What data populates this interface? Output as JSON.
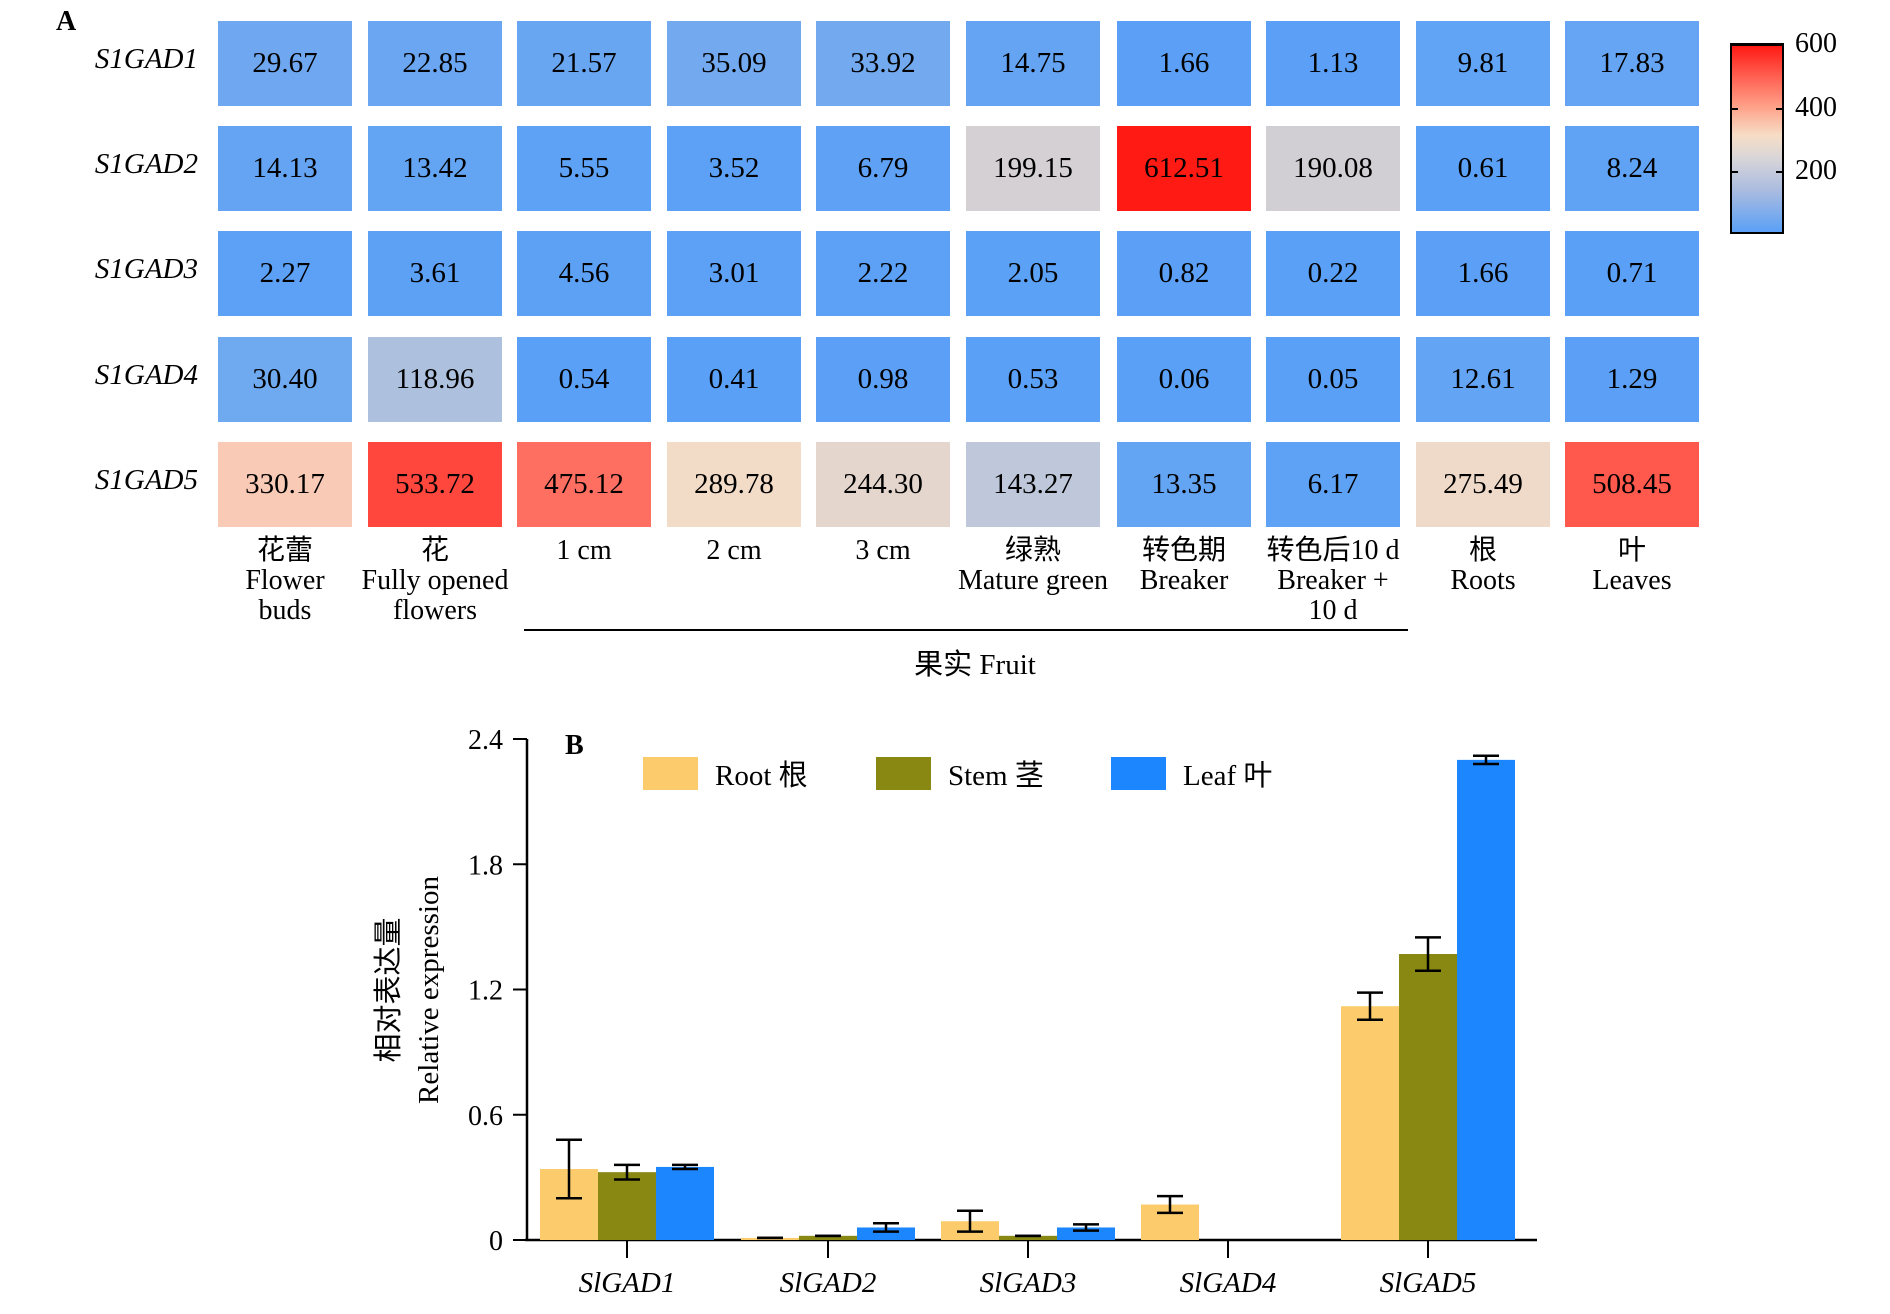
{
  "chart_data": [
    {
      "type": "heatmap",
      "panel": "A",
      "rows": [
        "S1GAD1",
        "S1GAD2",
        "S1GAD3",
        "S1GAD4",
        "S1GAD5"
      ],
      "columns": [
        {
          "zh": "花蕾",
          "en": "Flower buds",
          "en_lines": [
            "Flower",
            "buds"
          ]
        },
        {
          "zh": "花",
          "en": "Fully opened flowers",
          "en_lines": [
            "Fully opened",
            "flowers"
          ]
        },
        {
          "zh": "",
          "en": "1 cm",
          "en_lines": [
            "1 cm"
          ]
        },
        {
          "zh": "",
          "en": "2 cm",
          "en_lines": [
            "2 cm"
          ]
        },
        {
          "zh": "",
          "en": "3 cm",
          "en_lines": [
            "3 cm"
          ]
        },
        {
          "zh": "绿熟",
          "en": "Mature green",
          "en_lines": [
            "Mature green"
          ]
        },
        {
          "zh": "转色期",
          "en": "Breaker",
          "en_lines": [
            "Breaker"
          ]
        },
        {
          "zh": "转色后10 d",
          "en": "Breaker + 10 d",
          "en_lines": [
            "Breaker +",
            "10 d"
          ]
        },
        {
          "zh": "根",
          "en": "Roots",
          "en_lines": [
            "Roots"
          ]
        },
        {
          "zh": "叶",
          "en": "Leaves",
          "en_lines": [
            "Leaves"
          ]
        }
      ],
      "values": [
        [
          "29.67",
          "22.85",
          "21.57",
          "35.09",
          "33.92",
          "14.75",
          "1.66",
          "1.13",
          "9.81",
          "17.83"
        ],
        [
          "14.13",
          "13.42",
          "5.55",
          "3.52",
          "6.79",
          "199.15",
          "612.51",
          "190.08",
          "0.61",
          "8.24"
        ],
        [
          "2.27",
          "3.61",
          "4.56",
          "3.01",
          "2.22",
          "2.05",
          "0.82",
          "0.22",
          "1.66",
          "0.71"
        ],
        [
          "30.40",
          "118.96",
          "0.54",
          "0.41",
          "0.98",
          "0.53",
          "0.06",
          "0.05",
          "12.61",
          "1.29"
        ],
        [
          "330.17",
          "533.72",
          "475.12",
          "289.78",
          "244.30",
          "143.27",
          "13.35",
          "6.17",
          "275.49",
          "508.45"
        ]
      ],
      "group_label": "果实 Fruit",
      "group_span": [
        "1 cm",
        "Breaker + 10 d"
      ],
      "colorbar": {
        "range": [
          0,
          600
        ],
        "ticks": [
          "600",
          "400",
          "200"
        ],
        "colors": [
          "#5aa0f6",
          "#c3cad9",
          "#f7ddc6",
          "#ff8070",
          "#ff1a14"
        ]
      }
    },
    {
      "type": "bar",
      "panel": "B",
      "categories": [
        "SlGAD1",
        "SlGAD2",
        "SlGAD3",
        "SlGAD4",
        "SlGAD5"
      ],
      "series": [
        {
          "name": "Root 根",
          "color": "#fccc6c",
          "values": [
            0.34,
            0.01,
            0.09,
            0.17,
            1.12
          ],
          "errors": [
            0.14,
            0.0,
            0.05,
            0.04,
            0.065
          ]
        },
        {
          "name": "Stem 茎",
          "color": "#888813",
          "values": [
            0.325,
            0.02,
            0.02,
            0.0,
            1.37
          ],
          "errors": [
            0.035,
            0.0,
            0.0,
            0.0,
            0.08
          ]
        },
        {
          "name": "Leaf 叶",
          "color": "#1c86fe",
          "values": [
            0.35,
            0.06,
            0.06,
            0.0,
            2.3
          ],
          "errors": [
            0.01,
            0.02,
            0.015,
            0.0,
            0.02
          ]
        }
      ],
      "title": "",
      "xlabel": "",
      "ylabel_zh": "相对表达量",
      "ylabel": "Relative expression",
      "ylim": [
        0,
        2.4
      ],
      "yticks": [
        "0",
        "0.6",
        "1.2",
        "1.8",
        "2.4"
      ],
      "legend_position": "top"
    }
  ]
}
